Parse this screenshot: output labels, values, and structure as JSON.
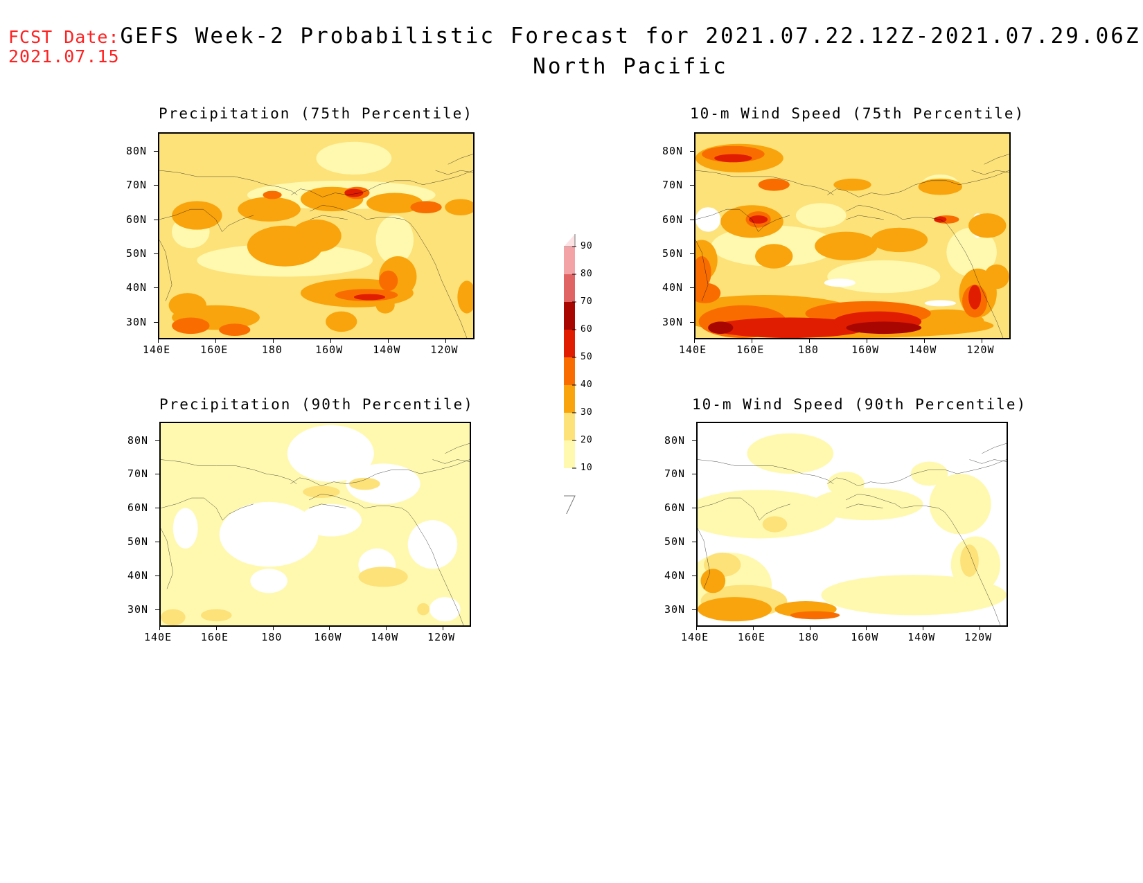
{
  "fcst": {
    "label": "FCST Date:",
    "date": "2021.07.15"
  },
  "header": {
    "title": "GEFS Week-2 Probabilistic Forecast for 2021.07.22.12Z-2021.07.29.06Z",
    "region": "North Pacific"
  },
  "panels": [
    {
      "title": "Precipitation (75th Percentile)",
      "variable": "precipitation",
      "percentile": 75
    },
    {
      "title": "10-m Wind Speed (75th Percentile)",
      "variable": "10-m wind speed",
      "percentile": 75
    },
    {
      "title": "Precipitation (90th Percentile)",
      "variable": "precipitation",
      "percentile": 90
    },
    {
      "title": "10-m Wind Speed (90th Percentile)",
      "variable": "10-m wind speed",
      "percentile": 90
    }
  ],
  "axes": {
    "lat_labels": [
      "80N",
      "70N",
      "60N",
      "50N",
      "40N",
      "30N"
    ],
    "lon_labels": [
      "140E",
      "160E",
      "180",
      "160W",
      "140W",
      "120W"
    ]
  },
  "colorbar": {
    "labels": [
      "90",
      "80",
      "70",
      "60",
      "50",
      "40",
      "30",
      "20",
      "10"
    ],
    "levels": [
      10,
      20,
      30,
      40,
      50,
      60,
      70,
      80,
      90
    ],
    "colors": [
      "#ffffff",
      "#fff9b0",
      "#fde27a",
      "#f9a40c",
      "#f96d00",
      "#e01d00",
      "#a80600",
      "#e06464",
      "#f3a2a6",
      "#fde2e4"
    ]
  }
}
